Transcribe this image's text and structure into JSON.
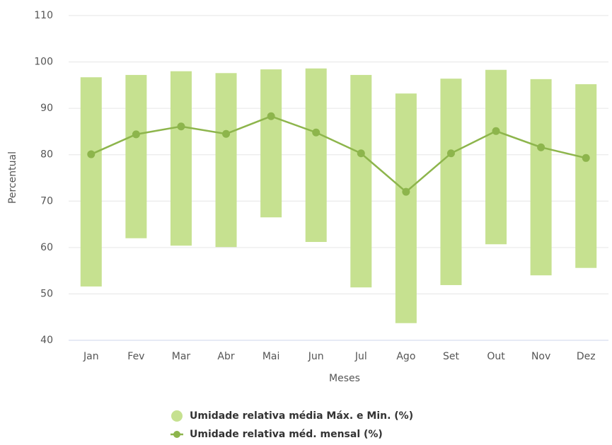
{
  "chart_data": {
    "type": "rangebar_line",
    "categories": [
      "Jan",
      "Fev",
      "Mar",
      "Abr",
      "Mai",
      "Jun",
      "Jul",
      "Ago",
      "Set",
      "Out",
      "Nov",
      "Dez"
    ],
    "x_label": "Meses",
    "y_label": "Percentual",
    "ylim": [
      40,
      110
    ],
    "yticks": [
      40,
      50,
      60,
      70,
      80,
      90,
      100,
      110
    ],
    "grid": true,
    "legend": "bottom",
    "series": [
      {
        "name": "Umidade relativa média Máx. e Min. (%)",
        "type": "rangebar",
        "color": "#c6e190",
        "low": [
          51.6,
          62.0,
          60.4,
          60.1,
          66.5,
          61.2,
          51.4,
          43.7,
          51.9,
          60.7,
          54.0,
          55.6
        ],
        "high": [
          96.7,
          97.2,
          98.0,
          97.6,
          98.4,
          98.6,
          97.2,
          93.2,
          96.4,
          98.3,
          96.3,
          95.2
        ]
      },
      {
        "name": "Umidade relativa méd. mensal (%)",
        "type": "line",
        "color": "#8db54c",
        "values": [
          80.1,
          84.4,
          86.1,
          84.5,
          88.3,
          84.8,
          80.3,
          72.0,
          80.3,
          85.1,
          81.6,
          79.3
        ]
      }
    ]
  }
}
